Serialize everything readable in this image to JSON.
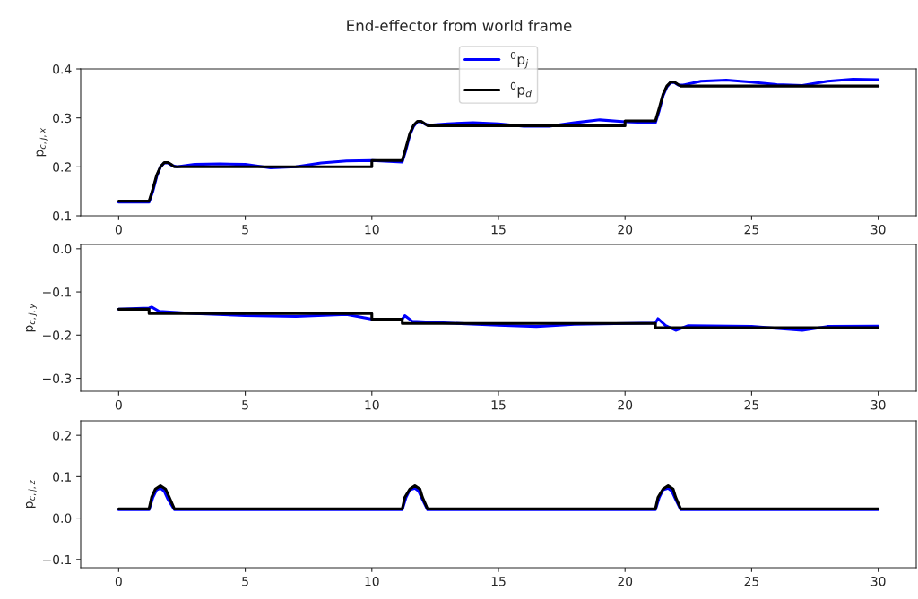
{
  "chart_data": [
    {
      "type": "line",
      "title": "End-effector from world frame",
      "ylabel": "p$_{c,j,x}$",
      "legend": "top",
      "grid": false,
      "xlim": [
        -1.5,
        31.5
      ],
      "xticks": [
        0,
        5,
        10,
        15,
        20,
        25,
        30
      ],
      "ylim": [
        0.1,
        0.4
      ],
      "yticks": [
        0.1,
        0.2,
        0.3,
        0.4
      ],
      "series": [
        {
          "name": "$^{0}$p$_{j}$",
          "color": "#0000ff",
          "x": [
            0,
            1.2,
            1.35,
            1.5,
            1.65,
            1.8,
            1.95,
            2.1,
            2.3,
            3,
            4,
            5,
            6,
            7,
            8,
            9,
            10,
            11.2,
            11.35,
            11.5,
            11.65,
            11.8,
            11.95,
            12.1,
            12.3,
            13,
            14,
            15,
            16,
            17,
            18,
            19,
            20,
            21.2,
            21.35,
            21.5,
            21.65,
            21.8,
            21.95,
            22.1,
            22.3,
            23,
            24,
            25,
            26,
            27,
            28,
            29,
            30
          ],
          "values": [
            0.128,
            0.128,
            0.15,
            0.18,
            0.2,
            0.208,
            0.208,
            0.203,
            0.2,
            0.205,
            0.206,
            0.205,
            0.198,
            0.2,
            0.208,
            0.212,
            0.213,
            0.21,
            0.235,
            0.265,
            0.283,
            0.292,
            0.292,
            0.287,
            0.285,
            0.288,
            0.29,
            0.288,
            0.283,
            0.283,
            0.29,
            0.296,
            0.292,
            0.29,
            0.315,
            0.345,
            0.363,
            0.372,
            0.372,
            0.367,
            0.367,
            0.375,
            0.377,
            0.373,
            0.368,
            0.366,
            0.375,
            0.379,
            0.378
          ]
        },
        {
          "name": "$^{0}$p$_{d}$",
          "color": "#000000",
          "x": [
            0,
            1.2,
            1.35,
            1.5,
            1.65,
            1.8,
            1.95,
            2.1,
            2.2,
            10,
            10,
            11.2,
            11.35,
            11.5,
            11.65,
            11.8,
            11.95,
            12.1,
            12.2,
            20,
            20,
            21.2,
            21.35,
            21.5,
            21.65,
            21.8,
            21.95,
            22.1,
            22.2,
            30
          ],
          "values": [
            0.13,
            0.13,
            0.155,
            0.183,
            0.2,
            0.209,
            0.209,
            0.204,
            0.2,
            0.2,
            0.213,
            0.213,
            0.24,
            0.268,
            0.285,
            0.293,
            0.293,
            0.288,
            0.284,
            0.284,
            0.294,
            0.294,
            0.32,
            0.348,
            0.365,
            0.373,
            0.373,
            0.368,
            0.365,
            0.365
          ]
        }
      ]
    },
    {
      "type": "line",
      "ylabel": "p$_{c,j,y}$",
      "grid": false,
      "xlim": [
        -1.5,
        31.5
      ],
      "xticks": [
        0,
        5,
        10,
        15,
        20,
        25,
        30
      ],
      "ylim": [
        -0.33,
        0.01
      ],
      "yticks": [
        {
          "value": -0.3,
          "label": "−0.3"
        },
        {
          "value": -0.2,
          "label": "−0.2"
        },
        {
          "value": -0.1,
          "label": "−0.1"
        },
        {
          "value": 0,
          "label": "0.0"
        }
      ],
      "series": [
        {
          "color": "#0000ff",
          "x": [
            0,
            1.2,
            1.3,
            1.6,
            3,
            5,
            7,
            9,
            10,
            11.2,
            11.3,
            11.6,
            13,
            15,
            16.5,
            18,
            21.2,
            21.3,
            21.6,
            22,
            22.5,
            25,
            27,
            28,
            30
          ],
          "values": [
            -0.14,
            -0.137,
            -0.135,
            -0.145,
            -0.15,
            -0.155,
            -0.157,
            -0.152,
            -0.163,
            -0.163,
            -0.155,
            -0.168,
            -0.172,
            -0.177,
            -0.18,
            -0.175,
            -0.172,
            -0.162,
            -0.178,
            -0.189,
            -0.178,
            -0.18,
            -0.189,
            -0.18,
            -0.179
          ]
        },
        {
          "color": "#000000",
          "x": [
            0,
            1.2,
            1.2,
            10,
            10,
            11.2,
            11.2,
            21.2,
            21.2,
            30
          ],
          "values": [
            -0.14,
            -0.14,
            -0.15,
            -0.15,
            -0.163,
            -0.163,
            -0.173,
            -0.173,
            -0.183,
            -0.183
          ]
        }
      ]
    },
    {
      "type": "line",
      "ylabel": "p$_{c,j,z}$",
      "grid": false,
      "xlim": [
        -1.5,
        31.5
      ],
      "xticks": [
        0,
        5,
        10,
        15,
        20,
        25,
        30
      ],
      "ylim": [
        -0.12,
        0.235
      ],
      "yticks": [
        {
          "value": -0.1,
          "label": "−0.1"
        },
        {
          "value": 0,
          "label": "0.0"
        },
        0.1,
        0.2
      ],
      "series": [
        {
          "color": "#0000ff",
          "x": [
            0,
            1.2,
            1.35,
            1.5,
            1.65,
            1.8,
            1.95,
            2.2,
            11.2,
            11.35,
            11.5,
            11.7,
            11.85,
            12.0,
            12.2,
            21.2,
            21.35,
            21.5,
            21.7,
            21.85,
            22.0,
            22.2,
            30
          ],
          "values": [
            0.02,
            0.02,
            0.05,
            0.068,
            0.072,
            0.065,
            0.045,
            0.02,
            0.02,
            0.05,
            0.068,
            0.072,
            0.065,
            0.045,
            0.02,
            0.02,
            0.05,
            0.068,
            0.072,
            0.065,
            0.045,
            0.02,
            0.02
          ]
        },
        {
          "color": "#000000",
          "x": [
            0,
            1.2,
            1.3,
            1.45,
            1.65,
            1.85,
            2.0,
            2.2,
            11.2,
            11.3,
            11.5,
            11.7,
            11.9,
            12.0,
            12.2,
            21.2,
            21.3,
            21.5,
            21.7,
            21.9,
            22.0,
            22.2,
            30
          ],
          "values": [
            0.022,
            0.022,
            0.05,
            0.07,
            0.078,
            0.07,
            0.05,
            0.022,
            0.022,
            0.05,
            0.07,
            0.078,
            0.07,
            0.05,
            0.022,
            0.022,
            0.05,
            0.07,
            0.078,
            0.07,
            0.05,
            0.022,
            0.022
          ]
        }
      ]
    }
  ]
}
